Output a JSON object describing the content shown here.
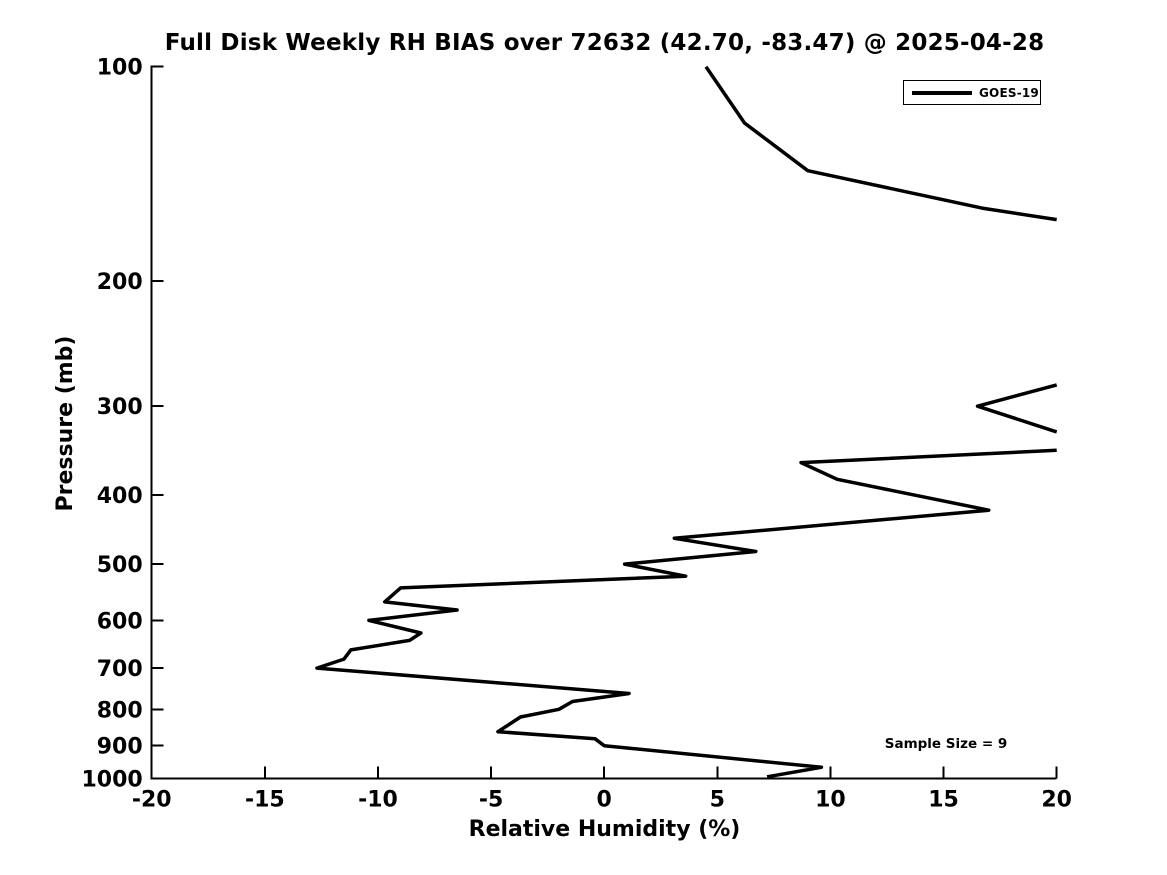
{
  "title": "Full Disk Weekly RH BIAS over 72632 (42.70, -83.47) @ 2025-04-28",
  "legend": {
    "label": "GOES-19"
  },
  "annotation": {
    "text": "Sample Size = 9"
  },
  "colors": {
    "background": "#ffffff",
    "line": "#000000",
    "axis": "#000000",
    "text": "#000000"
  },
  "chart_data": {
    "type": "line",
    "title": "Full Disk Weekly RH BIAS over 72632 (42.70, -83.47) @ 2025-04-28",
    "xlabel": "Relative Humidity (%)",
    "ylabel": "Pressure (mb)",
    "xlim": [
      -20,
      20
    ],
    "ylim": [
      100,
      1000
    ],
    "x_ticks": [
      -20,
      -15,
      -10,
      -5,
      0,
      5,
      10,
      15,
      20
    ],
    "y_ticks": [
      100,
      200,
      300,
      400,
      500,
      600,
      700,
      800,
      900,
      1000
    ],
    "y_scale": "log",
    "y_inverted": true,
    "grid": false,
    "legend_entries": [
      "GOES-19"
    ],
    "legend_position": "upper right",
    "annotations": [
      {
        "text": "Sample Size = 9",
        "x_rh": 15,
        "y_pressure": 900
      }
    ],
    "series": [
      {
        "name": "GOES-19",
        "color": "#000000",
        "note": "RH bias (%) vs pressure (mb); curve clipped at xlim 20%, producing 3 visible segments. Points are [rh_bias_percent, pressure_mb].",
        "segments": [
          [
            [
              4.5,
              100
            ],
            [
              6.2,
              120
            ],
            [
              9.0,
              140
            ],
            [
              16.7,
              158
            ],
            [
              20.0,
              164
            ]
          ],
          [
            [
              20.0,
              280
            ],
            [
              16.5,
              300
            ],
            [
              20.0,
              326
            ]
          ],
          [
            [
              20.0,
              346
            ],
            [
              8.7,
              360
            ],
            [
              10.3,
              380
            ],
            [
              17.0,
              420
            ],
            [
              3.1,
              460
            ],
            [
              6.7,
              480
            ],
            [
              0.9,
              500
            ],
            [
              3.6,
              520
            ],
            [
              -9.0,
              540
            ],
            [
              -9.7,
              565
            ],
            [
              -6.5,
              580
            ],
            [
              -10.4,
              600
            ],
            [
              -8.1,
              625
            ],
            [
              -8.6,
              640
            ],
            [
              -11.2,
              660
            ],
            [
              -11.5,
              680
            ],
            [
              -12.7,
              700
            ],
            [
              1.1,
              760
            ],
            [
              -1.4,
              780
            ],
            [
              -2.0,
              800
            ],
            [
              -3.7,
              820
            ],
            [
              -4.7,
              860
            ],
            [
              -0.4,
              880
            ],
            [
              0.0,
              900
            ],
            [
              9.6,
              965
            ],
            [
              7.2,
              995
            ]
          ]
        ]
      }
    ]
  }
}
